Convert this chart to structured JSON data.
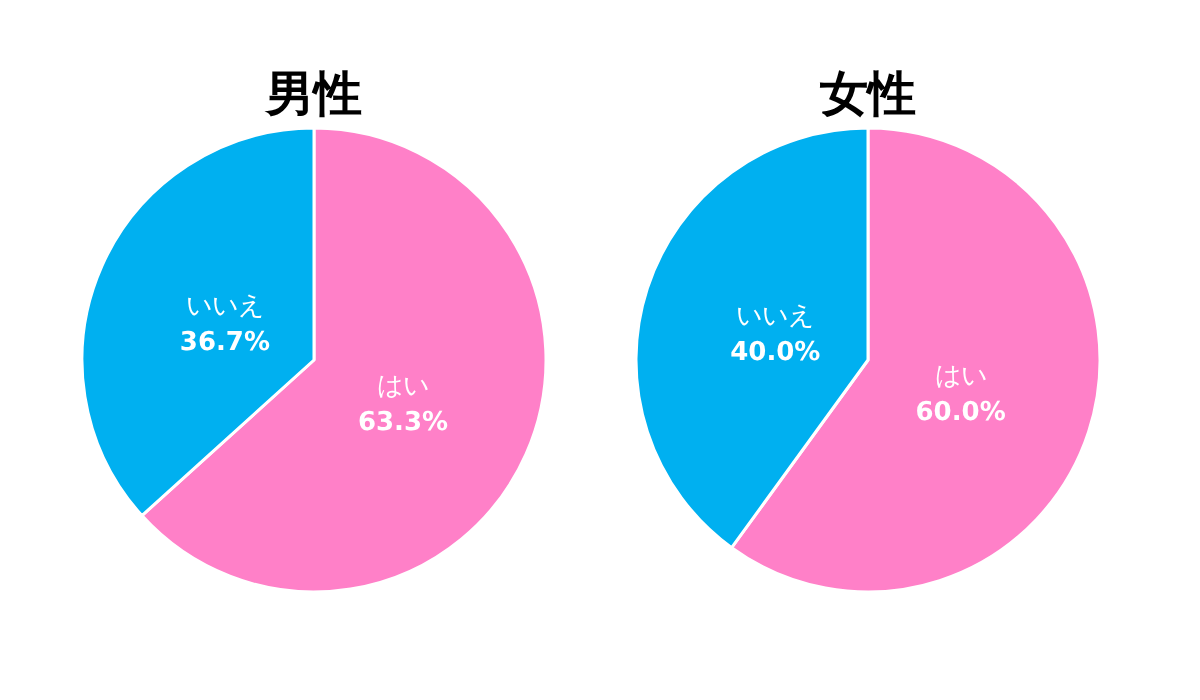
{
  "chart_data": [
    {
      "type": "pie",
      "title": "男性",
      "categories": [
        "はい",
        "いいえ"
      ],
      "values": [
        63.3,
        36.7
      ],
      "colors": [
        "#ff80c8",
        "#00b0f0"
      ],
      "value_labels": [
        "63.3%",
        "36.7%"
      ]
    },
    {
      "type": "pie",
      "title": "女性",
      "categories": [
        "はい",
        "いいえ"
      ],
      "values": [
        60.0,
        40.0
      ],
      "colors": [
        "#ff80c8",
        "#00b0f0"
      ],
      "value_labels": [
        "60.0%",
        "40.0%"
      ]
    }
  ]
}
